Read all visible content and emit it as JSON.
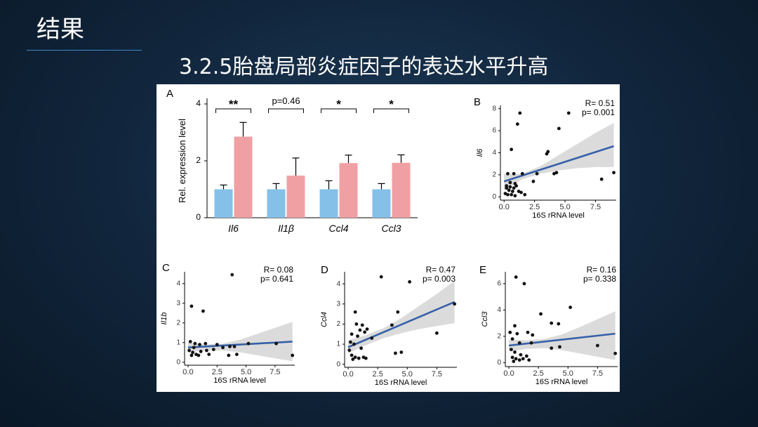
{
  "slide": {
    "title": "结果",
    "heading": "3.2.5胎盘局部炎症因子的表达水平升高"
  },
  "colors": {
    "bar_control": "#85c0e8",
    "bar_treated": "#f0a0a3",
    "fit_line": "#3560a8",
    "ci_band": "#d9d9d9",
    "points": "#111111"
  },
  "chart_data": [
    {
      "panel_label": "A",
      "type": "bar",
      "ylabel": "Rel. expression level",
      "ylim": [
        0,
        4
      ],
      "yticks": [
        0,
        2,
        4
      ],
      "categories": [
        "Il6",
        "Il1β",
        "Ccl4",
        "Ccl3"
      ],
      "series": [
        {
          "color": "#85c0e8",
          "values": [
            1.0,
            1.0,
            1.0,
            1.0
          ],
          "errors": [
            0.15,
            0.2,
            0.3,
            0.2
          ]
        },
        {
          "color": "#f0a0a3",
          "values": [
            2.85,
            1.48,
            1.92,
            1.93
          ],
          "errors": [
            0.5,
            0.62,
            0.28,
            0.28
          ]
        }
      ],
      "significance": [
        "**",
        "p=0.46",
        "*",
        "*"
      ]
    },
    {
      "panel_label": "B",
      "type": "scatter",
      "ylabel": "Il6",
      "xlabel": "16S rRNA level",
      "xlim": [
        -0.3,
        9.2
      ],
      "ylim": [
        -0.3,
        8.3
      ],
      "xticks": [
        "0.0",
        "2.5",
        "5.0",
        "7.5"
      ],
      "xtick_values": [
        0,
        2.5,
        5,
        7.5
      ],
      "yticks": [
        0,
        2,
        4,
        6,
        8
      ],
      "stats": {
        "r": "R= 0.51",
        "p": "p= 0.001"
      },
      "fit": {
        "x": [
          0,
          9
        ],
        "y": [
          1.4,
          4.6
        ]
      },
      "ci": {
        "x": [
          0,
          1.5,
          3,
          4.5,
          6,
          7.5,
          9
        ],
        "lower": [
          0.6,
          1.6,
          2.1,
          2.4,
          2.6,
          2.7,
          2.7
        ],
        "upper": [
          2.1,
          2.1,
          2.8,
          3.8,
          4.8,
          5.8,
          6.7
        ]
      },
      "points": [
        [
          1.3,
          7.6
        ],
        [
          5.3,
          7.6
        ],
        [
          1.1,
          6.6
        ],
        [
          4.5,
          6.2
        ],
        [
          0.6,
          4.3
        ],
        [
          3.6,
          4.1
        ],
        [
          3.5,
          3.9
        ],
        [
          0.3,
          2.1
        ],
        [
          0.8,
          2.1
        ],
        [
          1.5,
          2.1
        ],
        [
          2.7,
          2.1
        ],
        [
          4.1,
          2.1
        ],
        [
          4.3,
          2.2
        ],
        [
          9.0,
          2.2
        ],
        [
          8.0,
          1.6
        ],
        [
          2.4,
          1.4
        ],
        [
          0.5,
          1.3
        ],
        [
          0.9,
          1.2
        ],
        [
          1.0,
          1.0
        ],
        [
          0.2,
          0.8
        ],
        [
          0.4,
          0.6
        ],
        [
          0.7,
          0.5
        ],
        [
          1.2,
          0.5
        ],
        [
          0.1,
          0.3
        ],
        [
          0.3,
          0.2
        ],
        [
          0.6,
          0.2
        ],
        [
          0.9,
          0.1
        ],
        [
          1.4,
          0.4
        ],
        [
          0.2,
          1.0
        ],
        [
          0.5,
          0.9
        ],
        [
          1.7,
          0.2
        ],
        [
          0.8,
          0.8
        ]
      ]
    },
    {
      "panel_label": "C",
      "type": "scatter",
      "ylabel": "Il1b",
      "xlabel": "16S rRNA level",
      "xlim": [
        -0.3,
        9.2
      ],
      "ylim": [
        -0.15,
        4.6
      ],
      "xticks": [
        "0.0",
        "2.5",
        "5.0",
        "7.5"
      ],
      "xtick_values": [
        0,
        2.5,
        5,
        7.5
      ],
      "yticks": [
        0,
        1,
        2,
        3,
        4
      ],
      "stats": {
        "r": "R= 0.08",
        "p": "p= 0.641"
      },
      "fit": {
        "x": [
          0,
          9
        ],
        "y": [
          0.75,
          1.05
        ]
      },
      "ci": {
        "x": [
          0,
          1.5,
          3,
          4.5,
          6,
          7.5,
          9
        ],
        "lower": [
          0.5,
          0.6,
          0.6,
          0.5,
          0.35,
          0.2,
          0.05
        ],
        "upper": [
          1.0,
          0.9,
          0.95,
          1.15,
          1.45,
          1.75,
          2.05
        ]
      },
      "points": [
        [
          3.8,
          4.45
        ],
        [
          0.3,
          2.85
        ],
        [
          1.3,
          2.6
        ],
        [
          0.2,
          1.05
        ],
        [
          0.6,
          0.95
        ],
        [
          1.0,
          0.9
        ],
        [
          1.5,
          0.95
        ],
        [
          2.5,
          0.9
        ],
        [
          3.0,
          0.75
        ],
        [
          3.6,
          0.8
        ],
        [
          4.0,
          0.8
        ],
        [
          5.2,
          0.95
        ],
        [
          7.6,
          0.95
        ],
        [
          0.1,
          0.6
        ],
        [
          0.4,
          0.5
        ],
        [
          0.7,
          0.4
        ],
        [
          1.1,
          0.55
        ],
        [
          0.3,
          0.35
        ],
        [
          0.9,
          0.35
        ],
        [
          1.8,
          0.4
        ],
        [
          2.2,
          0.65
        ],
        [
          3.5,
          0.35
        ],
        [
          4.2,
          0.4
        ],
        [
          9.0,
          0.35
        ],
        [
          0.5,
          0.75
        ],
        [
          1.6,
          0.6
        ]
      ]
    },
    {
      "panel_label": "D",
      "type": "scatter",
      "ylabel": "Ccl4",
      "xlabel": "16S rRNA level",
      "xlim": [
        -0.3,
        9.2
      ],
      "ylim": [
        -0.15,
        4.6
      ],
      "xticks": [
        "0.0",
        "2.5",
        "5.0",
        "7.5"
      ],
      "xtick_values": [
        0,
        2.5,
        5,
        7.5
      ],
      "yticks": [
        0,
        1,
        2,
        3,
        4
      ],
      "stats": {
        "r": "R= 0.47",
        "p": "p= 0.003"
      },
      "fit": {
        "x": [
          0,
          9
        ],
        "y": [
          0.85,
          3.1
        ]
      },
      "ci": {
        "x": [
          0,
          1.5,
          3,
          4.5,
          6,
          7.5,
          9
        ],
        "lower": [
          0.55,
          0.95,
          1.3,
          1.55,
          1.75,
          1.9,
          2.05
        ],
        "upper": [
          1.2,
          1.45,
          1.8,
          2.3,
          2.9,
          3.5,
          4.15
        ]
      },
      "points": [
        [
          2.8,
          4.35
        ],
        [
          5.2,
          4.1
        ],
        [
          9.0,
          3.0
        ],
        [
          0.6,
          2.6
        ],
        [
          4.2,
          2.6
        ],
        [
          0.7,
          2.0
        ],
        [
          1.2,
          1.95
        ],
        [
          1.6,
          1.75
        ],
        [
          3.7,
          1.95
        ],
        [
          1.0,
          1.7
        ],
        [
          1.4,
          1.6
        ],
        [
          0.3,
          1.5
        ],
        [
          0.8,
          1.4
        ],
        [
          2.0,
          1.3
        ],
        [
          7.5,
          1.55
        ],
        [
          0.2,
          1.1
        ],
        [
          0.5,
          1.0
        ],
        [
          1.1,
          0.8
        ],
        [
          0.3,
          0.45
        ],
        [
          0.6,
          0.35
        ],
        [
          0.9,
          0.3
        ],
        [
          1.3,
          0.35
        ],
        [
          0.4,
          0.25
        ],
        [
          4.0,
          0.55
        ],
        [
          4.5,
          0.6
        ],
        [
          0.1,
          0.7
        ],
        [
          1.5,
          0.3
        ]
      ]
    },
    {
      "panel_label": "E",
      "type": "scatter",
      "ylabel": "Ccl3",
      "xlabel": "16S rRNA level",
      "xlim": [
        -0.3,
        9.2
      ],
      "ylim": [
        -0.3,
        6.9
      ],
      "xticks": [
        "0.0",
        "2.5",
        "5.0",
        "7.5"
      ],
      "xtick_values": [
        0,
        2.5,
        5,
        7.5
      ],
      "yticks": [
        0,
        2,
        4,
        6
      ],
      "stats": {
        "r": "R= 0.16",
        "p": "p= 0.338"
      },
      "fit": {
        "x": [
          0,
          9
        ],
        "y": [
          1.3,
          2.2
        ]
      },
      "ci": {
        "x": [
          0,
          1.5,
          3,
          4.5,
          6,
          7.5,
          9
        ],
        "lower": [
          0.85,
          1.05,
          1.1,
          0.95,
          0.7,
          0.45,
          0.2
        ],
        "upper": [
          1.75,
          1.7,
          1.8,
          2.15,
          2.7,
          3.3,
          3.9
        ]
      },
      "points": [
        [
          0.6,
          6.5
        ],
        [
          1.3,
          6.0
        ],
        [
          5.2,
          4.2
        ],
        [
          2.7,
          3.7
        ],
        [
          3.6,
          3.0
        ],
        [
          4.2,
          2.95
        ],
        [
          0.5,
          2.8
        ],
        [
          0.1,
          2.3
        ],
        [
          0.7,
          2.2
        ],
        [
          1.6,
          2.3
        ],
        [
          2.0,
          2.1
        ],
        [
          0.3,
          1.8
        ],
        [
          0.9,
          1.5
        ],
        [
          1.9,
          1.5
        ],
        [
          3.6,
          1.1
        ],
        [
          4.3,
          1.2
        ],
        [
          7.5,
          1.3
        ],
        [
          9.0,
          0.7
        ],
        [
          0.2,
          1.0
        ],
        [
          0.5,
          0.8
        ],
        [
          1.0,
          0.6
        ],
        [
          0.3,
          0.4
        ],
        [
          0.6,
          0.3
        ],
        [
          0.9,
          0.2
        ],
        [
          1.2,
          0.3
        ],
        [
          1.5,
          0.5
        ],
        [
          0.4,
          0.1
        ],
        [
          1.7,
          0.2
        ]
      ]
    }
  ]
}
